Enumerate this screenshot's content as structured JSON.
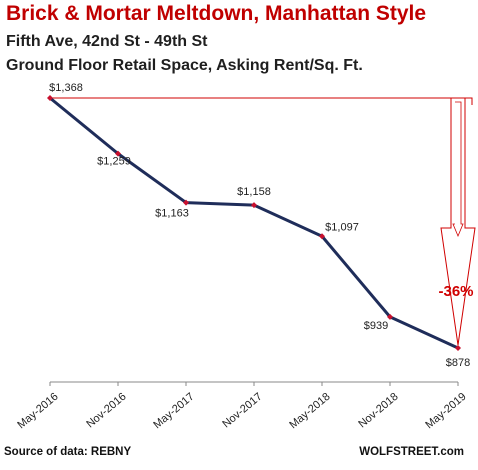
{
  "header": {
    "title": "Brick & Mortar Meltdown, Manhattan Style",
    "subtitle_1": "Fifth Ave, 42nd St - 49th St",
    "subtitle_2": "Ground Floor Retail Space, Asking Rent/Sq. Ft."
  },
  "footer": {
    "source": "Source of data: REBNY",
    "brand": "WOLFSTREET.com"
  },
  "colors": {
    "title": "#c00000",
    "line": "#1f2d5a",
    "marker": "#c8102e",
    "reference": "#d00000",
    "axis": "#888888"
  },
  "chart_data": {
    "type": "line",
    "title": "Brick & Mortar Meltdown, Manhattan Style",
    "xlabel": "",
    "ylabel": "",
    "ylim": [
      870,
      1375
    ],
    "grid": false,
    "categories": [
      "May-2016",
      "Nov-2016",
      "May-2017",
      "Nov-2017",
      "May-2018",
      "Nov-2018",
      "May-2019"
    ],
    "values": [
      1368,
      1259,
      1163,
      1158,
      1097,
      939,
      878
    ],
    "data_labels": [
      "$1,368",
      "$1,259",
      "$1,163",
      "$1,158",
      "$1,097",
      "$939",
      "$878"
    ],
    "annotations": [
      {
        "text": "-36%"
      }
    ]
  }
}
